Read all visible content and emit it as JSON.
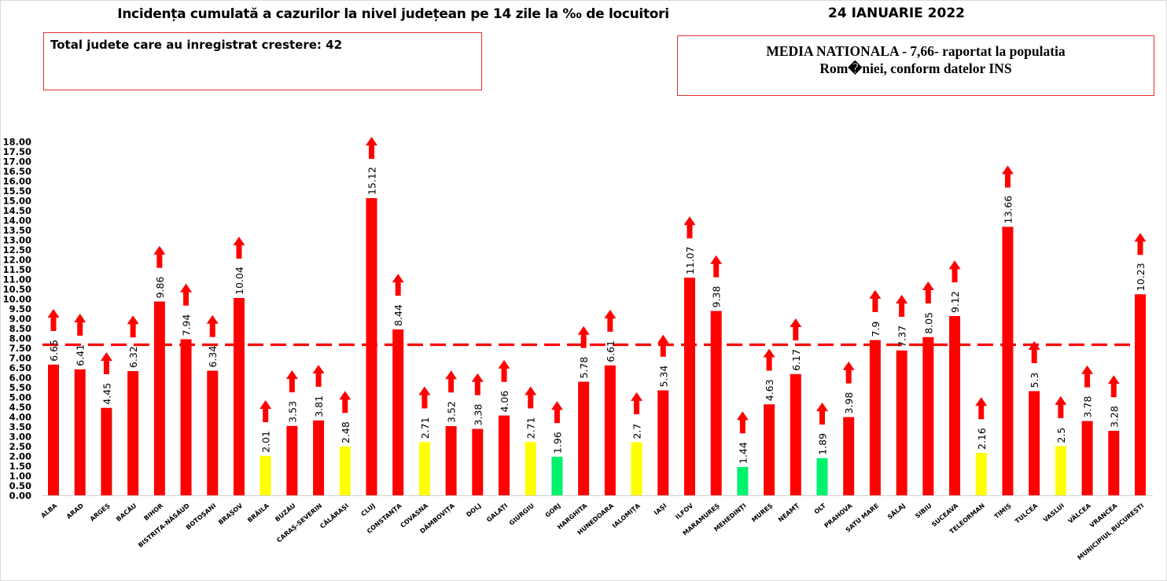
{
  "header": {
    "title": "Incidența cumulată a cazurilor la nivel județean pe 14 zile la ‰ de locuitori",
    "date": "24 IANUARIE 2022"
  },
  "info_box_left": {
    "text": "Total judete care au inregistrat crestere: 42"
  },
  "info_box_right": {
    "line1": "MEDIA NATIONALA - 7,66-  raportat la populatia",
    "line2": "Rom�niei, conform datelor INS"
  },
  "colors": {
    "red": "#ff0000",
    "yellow": "#ffff00",
    "green": "#00f26c",
    "mean_line": "#ff0000",
    "arrow": "#ff0000"
  },
  "chart_data": {
    "type": "bar",
    "title": "Incidența cumulată a cazurilor la nivel județean pe 14 zile la ‰ de locuitori",
    "xlabel": "",
    "ylabel": "",
    "ylim": [
      0,
      18
    ],
    "y_ticks": [
      "0.00",
      "0.50",
      "1.00",
      "1.50",
      "2.00",
      "2.50",
      "3.00",
      "3.50",
      "4.00",
      "4.50",
      "5.00",
      "5.50",
      "6.00",
      "6.50",
      "7.00",
      "7.50",
      "8.00",
      "8.50",
      "9.00",
      "9.50",
      "10.00",
      "10.50",
      "11.00",
      "11.50",
      "12.00",
      "12.50",
      "13.00",
      "13.50",
      "14.00",
      "14.50",
      "15.00",
      "15.50",
      "16.00",
      "16.50",
      "17.00",
      "17.50",
      "18.00"
    ],
    "grid": false,
    "legend": "none",
    "reference_line": {
      "label": "MEDIA NATIONALA",
      "value": 7.66,
      "style": "dashed"
    },
    "trend_marker": "up-arrow",
    "categories": [
      "ALBA",
      "ARAD",
      "ARGEȘ",
      "BACĂU",
      "BIHOR",
      "BISTRIȚA-NĂSĂUD",
      "BOTOȘANI",
      "BRAȘOV",
      "BRĂILA",
      "BUZĂU",
      "CARAȘ-SEVERIN",
      "CĂLĂRAȘI",
      "CLUJ",
      "CONSTANȚA",
      "COVASNA",
      "DÂMBOVIȚA",
      "DOLJ",
      "GALAȚI",
      "GIURGIU",
      "GORJ",
      "HARGHITA",
      "HUNEDOARA",
      "IALOMIȚA",
      "IAȘI",
      "ILFOV",
      "MARAMUREȘ",
      "MEHEDINȚI",
      "MUREȘ",
      "NEAMȚ",
      "OLT",
      "PRAHOVA",
      "SATU MARE",
      "SĂLAJ",
      "SIBIU",
      "SUCEAVA",
      "TELEORMAN",
      "TIMIȘ",
      "TULCEA",
      "VASLUI",
      "VÂLCEA",
      "VRANCEA",
      "MUNICIPIUL BUCUREȘTI"
    ],
    "values": [
      6.65,
      6.41,
      4.45,
      6.32,
      9.86,
      7.94,
      6.34,
      10.04,
      2.01,
      3.53,
      3.81,
      2.48,
      15.12,
      8.44,
      2.71,
      3.52,
      3.38,
      4.06,
      2.71,
      1.96,
      5.78,
      6.61,
      2.7,
      5.34,
      11.07,
      9.38,
      1.44,
      4.63,
      6.17,
      1.89,
      3.98,
      7.9,
      7.37,
      8.05,
      9.12,
      2.16,
      13.66,
      5.3,
      2.5,
      3.78,
      3.28,
      10.23
    ],
    "value_labels": [
      "6.65",
      "6.41",
      "4.45",
      "6.32",
      "9.86",
      "7.94",
      "6.34",
      "10.04",
      "2.01",
      "3.53",
      "3.81",
      "2.48",
      "15.12",
      "8.44",
      "2.71",
      "3.52",
      "3.38",
      "4.06",
      "2.71",
      "1.96",
      "5.78",
      "6.61",
      "2.7",
      "5.34",
      "11.07",
      "9.38",
      "1.44",
      "4.63",
      "6.17",
      "1.89",
      "3.98",
      "7.9",
      "7.37",
      "8.05",
      "9.12",
      "2.16",
      "13.66",
      "5.3",
      "2.5",
      "3.78",
      "3.28",
      "10.23"
    ],
    "bar_colors": [
      "red",
      "red",
      "red",
      "red",
      "red",
      "red",
      "red",
      "red",
      "yellow",
      "red",
      "red",
      "yellow",
      "red",
      "red",
      "yellow",
      "red",
      "red",
      "red",
      "yellow",
      "green",
      "red",
      "red",
      "yellow",
      "red",
      "red",
      "red",
      "green",
      "red",
      "red",
      "green",
      "red",
      "red",
      "red",
      "red",
      "red",
      "yellow",
      "red",
      "red",
      "yellow",
      "red",
      "red",
      "red"
    ]
  }
}
